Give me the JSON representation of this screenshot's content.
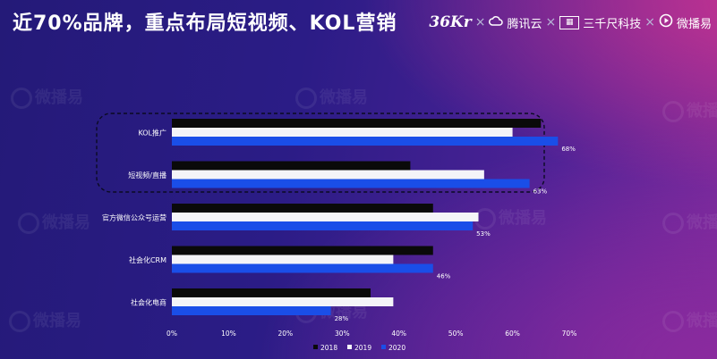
{
  "header": {
    "title": "近70%品牌，重点布局短视频、KOL营销",
    "logos": [
      "36Kr",
      "腾讯云",
      "三千尺科技",
      "微播易"
    ],
    "separator": "×"
  },
  "watermark_text": "微播易",
  "chart_data": {
    "type": "bar",
    "orientation": "horizontal",
    "categories": [
      "KOL推广",
      "短视频/直播",
      "官方微信公众号运营",
      "社会化CRM",
      "社会化电商"
    ],
    "series": [
      {
        "name": "2018",
        "color": "#0a0a0a",
        "values": [
          65,
          42,
          46,
          46,
          35
        ]
      },
      {
        "name": "2019",
        "color": "#f4f4f8",
        "values": [
          60,
          55,
          54,
          39,
          39
        ]
      },
      {
        "name": "2020",
        "color": "#1a4ee8",
        "values": [
          68,
          63,
          53,
          46,
          28
        ]
      }
    ],
    "data_labels": [
      "68%",
      "63%",
      "53%",
      "46%",
      "28%"
    ],
    "x_ticks": [
      "0%",
      "10%",
      "20%",
      "30%",
      "40%",
      "50%",
      "60%",
      "70%"
    ],
    "xlim": [
      0,
      70
    ],
    "legend_position": "bottom",
    "highlight_categories": [
      "KOL推广",
      "短视频/直播"
    ],
    "grid": false
  }
}
